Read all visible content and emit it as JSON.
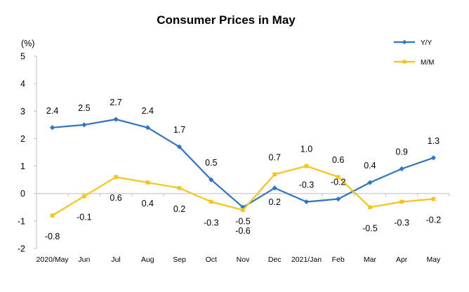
{
  "chart_data": {
    "type": "line",
    "title": "Consumer Prices in May",
    "ylabel": "(%)",
    "ylim": [
      -2,
      5
    ],
    "yticks": [
      -2,
      -1,
      0,
      1,
      2,
      3,
      4,
      5
    ],
    "categories": [
      "2020/May",
      "Jun",
      "Jul",
      "Aug",
      "Sep",
      "Oct",
      "Nov",
      "Dec",
      "2021/Jan",
      "Feb",
      "Mar",
      "Apr",
      "May"
    ],
    "series": [
      {
        "name": "Y/Y",
        "color": "#2E75C4",
        "marker": "diamond",
        "values": [
          2.4,
          2.5,
          2.7,
          2.4,
          1.7,
          0.5,
          -0.5,
          0.2,
          -0.3,
          -0.2,
          0.4,
          0.9,
          1.3
        ],
        "labels": [
          "2.4",
          "2.5",
          "2.7",
          "2.4",
          "1.7",
          "0.5",
          "-0.5",
          "0.2",
          "-0.3",
          "-0.2",
          "0.4",
          "0.9",
          "1.3"
        ]
      },
      {
        "name": "M/M",
        "color": "#F5C518",
        "marker": "square",
        "values": [
          -0.8,
          -0.1,
          0.6,
          0.4,
          0.2,
          -0.3,
          -0.6,
          0.7,
          1.0,
          0.6,
          -0.5,
          -0.3,
          -0.2
        ],
        "labels": [
          "-0.8",
          "-0.1",
          "0.6",
          "0.4",
          "0.2",
          "-0.3",
          "-0.6",
          "0.7",
          "1.0",
          "0.6",
          "-0.5",
          "-0.3",
          "-0.2"
        ]
      }
    ],
    "legend_position": "top-right",
    "grid": false
  }
}
